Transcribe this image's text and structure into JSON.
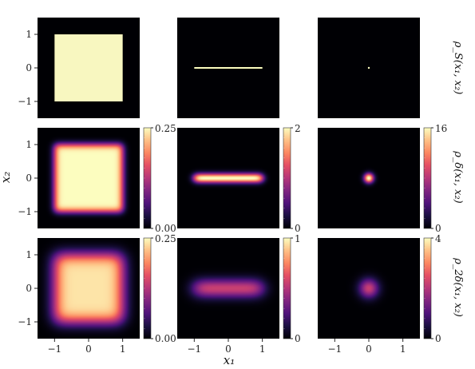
{
  "chart_data": {
    "type": "heatmap",
    "layout": "3x3 grid",
    "colormap": "magma",
    "x_axis": {
      "label": "x₁",
      "ticks": [
        "−1",
        "0",
        "1"
      ],
      "tick_values": [
        -1,
        0,
        1
      ],
      "range": [
        -1.5,
        1.5
      ]
    },
    "y_axis": {
      "label": "x₂",
      "ticks": [
        "−1",
        "0",
        "1"
      ],
      "tick_values": [
        -1,
        0,
        1
      ],
      "range": [
        -1.5,
        1.5
      ]
    },
    "columns": [
      {
        "support": "square",
        "half_width": [
          1.0,
          1.0
        ]
      },
      {
        "support": "segment",
        "half_width": [
          1.0,
          0.0
        ]
      },
      {
        "support": "point",
        "half_width": [
          0.0,
          0.0
        ]
      }
    ],
    "rows": [
      {
        "label": "ρ_S(x₁, x₂)",
        "smoothing": 0.0,
        "colorbars": null
      },
      {
        "label": "ρ_δ(x₁, x₂)",
        "smoothing": 0.1,
        "colorbars": [
          {
            "min": 0,
            "max": 0.25,
            "min_label": "0.00",
            "max_label": "0.25"
          },
          {
            "min": 0,
            "max": 2,
            "min_label": "0",
            "max_label": "2"
          },
          {
            "min": 0,
            "max": 16,
            "min_label": "0",
            "max_label": "16"
          }
        ]
      },
      {
        "label": "ρ_2δ(x₁, x₂)",
        "smoothing": 0.2,
        "colorbars": [
          {
            "min": 0,
            "max": 0.25,
            "min_label": "0.00",
            "max_label": "0.25"
          },
          {
            "min": 0,
            "max": 1,
            "min_label": "0",
            "max_label": "1"
          },
          {
            "min": 0,
            "max": 4,
            "min_label": "0",
            "max_label": "4"
          }
        ]
      }
    ]
  }
}
